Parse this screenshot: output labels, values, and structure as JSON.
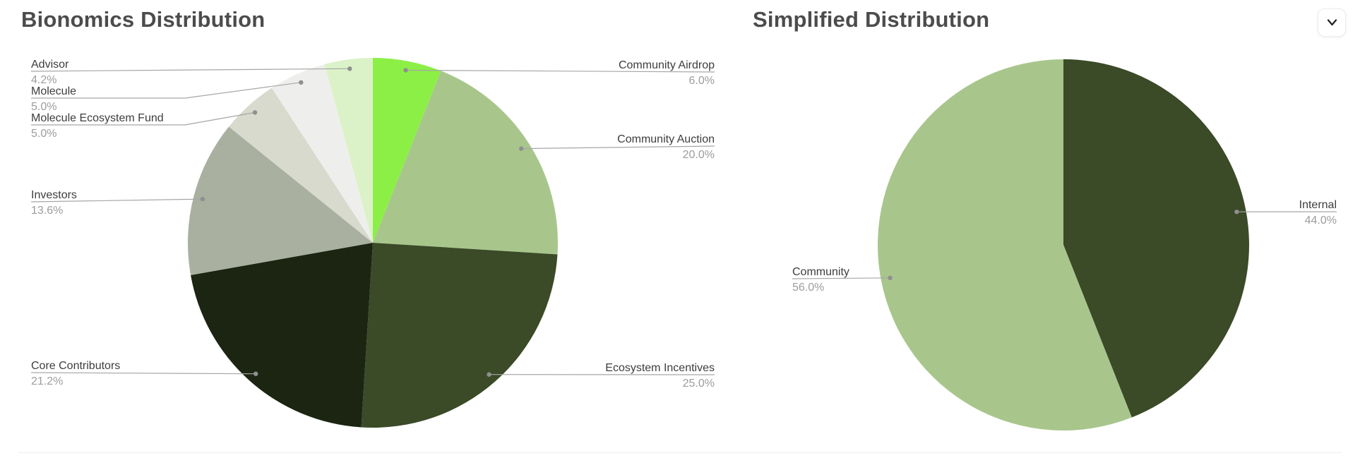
{
  "chart_data": [
    {
      "type": "pie",
      "title": "Bionomics Distribution",
      "labels": [
        "Community Airdrop",
        "Community Auction",
        "Ecosystem Incentives",
        "Core Contributors",
        "Investors",
        "Molecule Ecosystem Fund",
        "Molecule",
        "Advisor"
      ],
      "values": [
        6.0,
        20.0,
        25.0,
        21.2,
        13.6,
        5.0,
        5.0,
        4.2
      ],
      "value_labels": [
        "6.0%",
        "20.0%",
        "25.0%",
        "21.2%",
        "13.6%",
        "5.0%",
        "5.0%",
        "4.2%"
      ],
      "colors": [
        "#8cef46",
        "#a8c68c",
        "#3b4a27",
        "#1c2412",
        "#a9b0a0",
        "#d7dacd",
        "#eeefec",
        "#dbf2c8"
      ],
      "start_angle_deg": 0,
      "direction": "clockwise",
      "legend": "none",
      "label_style": "outside-leader-lines"
    },
    {
      "type": "pie",
      "title": "Simplified Distribution",
      "labels": [
        "Internal",
        "Community"
      ],
      "values": [
        44.0,
        56.0
      ],
      "value_labels": [
        "44.0%",
        "56.0%"
      ],
      "colors": [
        "#3b4a27",
        "#a8c68c"
      ],
      "start_angle_deg": 0,
      "direction": "clockwise",
      "legend": "none",
      "label_style": "outside-leader-lines"
    }
  ],
  "controls": {
    "collapse_icon": "chevron-down"
  },
  "ui_colors": {
    "title_text": "#4c4c4c",
    "label_name_text": "#3d3d3d",
    "label_value_text": "#9c9c9c",
    "leader_line": "#a6a6a6",
    "leader_dot": "#8f8f8f",
    "divider": "#ececeb",
    "background": "#ffffff"
  }
}
